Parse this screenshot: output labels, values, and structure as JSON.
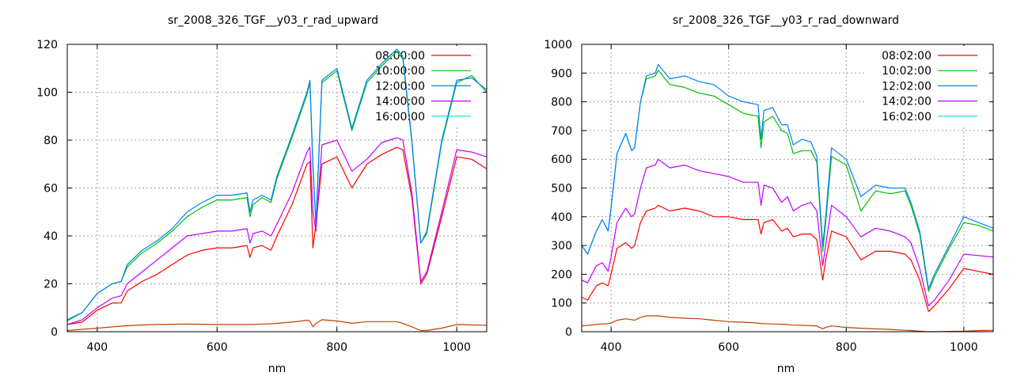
{
  "chart_data": [
    {
      "type": "line",
      "title": "sr_2008_326_TGF__y03_r_rad_upward",
      "xlabel": "nm",
      "ylabel": "",
      "xlim": [
        350,
        1050
      ],
      "ylim": [
        0,
        120
      ],
      "xticks": [
        400,
        600,
        800,
        1000
      ],
      "yticks": [
        0,
        20,
        40,
        60,
        80,
        100,
        120
      ],
      "grid": true,
      "legend_position": "top-right",
      "x": [
        350,
        375,
        400,
        425,
        440,
        450,
        475,
        500,
        525,
        550,
        575,
        600,
        625,
        650,
        655,
        660,
        675,
        690,
        700,
        725,
        750,
        755,
        760,
        765,
        775,
        800,
        825,
        850,
        875,
        900,
        910,
        925,
        940,
        950,
        975,
        1000,
        1025,
        1050
      ],
      "series": [
        {
          "name": "08:00:00",
          "color": "#ff0000",
          "legend_color": "#ff0000",
          "values": [
            3,
            4,
            9,
            12,
            12,
            17,
            21,
            24,
            28,
            32,
            34,
            35,
            35,
            36,
            31,
            35,
            36,
            34,
            40,
            53,
            70,
            71,
            35,
            45,
            70,
            73,
            60,
            70,
            74,
            77,
            76,
            56,
            20,
            24,
            48,
            73,
            72,
            68
          ]
        },
        {
          "name": "10:00:00",
          "color": "#00c000",
          "legend_color": "#00c000",
          "values": [
            4.5,
            8,
            16,
            20,
            21,
            27,
            33,
            37,
            42,
            48,
            52,
            55,
            55,
            56,
            48,
            53,
            56,
            54,
            64,
            81,
            99,
            104,
            68,
            44,
            104,
            109,
            84,
            104,
            111,
            117,
            114,
            79,
            37,
            41,
            79,
            104,
            107,
            100
          ]
        },
        {
          "name": "12:00:00",
          "color": "#0080ff",
          "legend_color": "#0080ff",
          "values": [
            5,
            8,
            16,
            20,
            21,
            28,
            34,
            38,
            43,
            50,
            54,
            57,
            57,
            58,
            50,
            55,
            57,
            55,
            65,
            82,
            100,
            105,
            70,
            45,
            105,
            110,
            85,
            105,
            112,
            118,
            115,
            80,
            37,
            42,
            80,
            105,
            106,
            101
          ]
        },
        {
          "name": "14:00:00",
          "color": "#c000ff",
          "legend_color": "#c000ff",
          "values": [
            3,
            5,
            10,
            14,
            15,
            20,
            25,
            30,
            35,
            40,
            41,
            42,
            42,
            43,
            37,
            41,
            42,
            40,
            45,
            58,
            75,
            77,
            50,
            42,
            78,
            80,
            67,
            72,
            79,
            81,
            80,
            58,
            21,
            25,
            50,
            76,
            75,
            73
          ]
        },
        {
          "name": "16:00:00",
          "color": "#c04000",
          "legend_color": "#00e0e0",
          "values": [
            0.5,
            1,
            1.5,
            2,
            2.3,
            2.5,
            2.8,
            3,
            3.1,
            3.2,
            3.1,
            3,
            3,
            3,
            3,
            3,
            3.2,
            3.3,
            3.5,
            4,
            4.8,
            4.5,
            2,
            3.5,
            5,
            4.5,
            3.5,
            4.2,
            4.2,
            4.2,
            3.5,
            2,
            0.5,
            0.5,
            1.5,
            3,
            2.8,
            2.7
          ]
        }
      ]
    },
    {
      "type": "line",
      "title": "sr_2008_326_TGF__y03_r_rad_downward",
      "xlabel": "nm",
      "ylabel": "",
      "xlim": [
        350,
        1050
      ],
      "ylim": [
        0,
        1000
      ],
      "xticks": [
        400,
        600,
        800,
        1000
      ],
      "yticks": [
        0,
        100,
        200,
        300,
        400,
        500,
        600,
        700,
        800,
        900,
        1000
      ],
      "grid": true,
      "legend_position": "top-right",
      "x": [
        350,
        360,
        375,
        385,
        395,
        400,
        410,
        425,
        435,
        440,
        450,
        460,
        475,
        480,
        500,
        525,
        550,
        575,
        600,
        625,
        650,
        655,
        660,
        675,
        690,
        700,
        710,
        725,
        740,
        750,
        760,
        765,
        775,
        800,
        825,
        850,
        875,
        900,
        910,
        925,
        940,
        950,
        975,
        1000,
        1025,
        1050
      ],
      "series": [
        {
          "name": "08:02:00",
          "color": "#ff0000",
          "legend_color": "#ff0000",
          "values": [
            120,
            110,
            160,
            170,
            160,
            200,
            290,
            310,
            290,
            300,
            380,
            420,
            430,
            440,
            420,
            430,
            420,
            400,
            400,
            390,
            390,
            340,
            380,
            390,
            350,
            360,
            330,
            340,
            340,
            320,
            180,
            250,
            350,
            330,
            250,
            280,
            280,
            270,
            250,
            180,
            70,
            90,
            150,
            220,
            210,
            200
          ]
        },
        {
          "name": "10:02:00",
          "color": "#00c000",
          "legend_color": "#00c000",
          "values": [
            300,
            270,
            350,
            390,
            350,
            430,
            620,
            690,
            630,
            640,
            800,
            880,
            890,
            910,
            860,
            850,
            830,
            820,
            790,
            760,
            750,
            640,
            730,
            750,
            700,
            690,
            620,
            630,
            630,
            590,
            280,
            380,
            610,
            580,
            420,
            490,
            480,
            490,
            440,
            340,
            140,
            190,
            290,
            380,
            370,
            350
          ]
        },
        {
          "name": "12:02:00",
          "color": "#0080ff",
          "legend_color": "#0080ff",
          "values": [
            300,
            270,
            350,
            390,
            350,
            430,
            620,
            690,
            630,
            640,
            800,
            890,
            900,
            930,
            880,
            890,
            870,
            860,
            820,
            800,
            790,
            670,
            770,
            780,
            720,
            720,
            650,
            670,
            660,
            610,
            300,
            400,
            640,
            600,
            470,
            510,
            500,
            500,
            450,
            350,
            150,
            200,
            300,
            400,
            380,
            360
          ]
        },
        {
          "name": "14:02:00",
          "color": "#c000ff",
          "legend_color": "#c000ff",
          "values": [
            180,
            170,
            230,
            240,
            210,
            260,
            380,
            430,
            400,
            410,
            500,
            570,
            580,
            600,
            570,
            580,
            560,
            550,
            540,
            520,
            520,
            440,
            510,
            500,
            450,
            470,
            420,
            440,
            450,
            420,
            230,
            300,
            440,
            400,
            330,
            360,
            350,
            330,
            310,
            220,
            90,
            110,
            180,
            270,
            265,
            260
          ]
        },
        {
          "name": "16:02:00",
          "color": "#c04000",
          "legend_color": "#00e0e0",
          "values": [
            20,
            22,
            25,
            27,
            28,
            30,
            40,
            45,
            42,
            40,
            50,
            55,
            55,
            55,
            50,
            47,
            45,
            40,
            35,
            33,
            30,
            28,
            28,
            27,
            26,
            25,
            23,
            22,
            21,
            20,
            10,
            15,
            20,
            15,
            12,
            10,
            8,
            5,
            4,
            2,
            0,
            0,
            1,
            2,
            4,
            5
          ]
        }
      ]
    }
  ]
}
